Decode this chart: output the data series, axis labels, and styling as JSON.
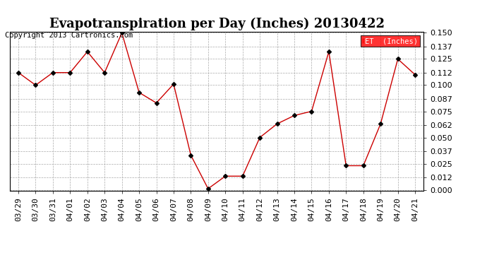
{
  "title": "Evapotranspiration per Day (Inches) 20130422",
  "copyright": "Copyright 2013 Cartronics.com",
  "legend_bg": "#ff0000",
  "legend_text_color": "#ffffff",
  "x_labels": [
    "03/29",
    "03/30",
    "03/31",
    "04/01",
    "04/02",
    "04/03",
    "04/04",
    "04/05",
    "04/06",
    "04/07",
    "04/08",
    "04/09",
    "04/10",
    "04/11",
    "04/12",
    "04/13",
    "04/14",
    "04/15",
    "04/16",
    "04/17",
    "04/18",
    "04/19",
    "04/20",
    "04/21"
  ],
  "y_values": [
    0.112,
    0.1,
    0.112,
    0.112,
    0.132,
    0.112,
    0.15,
    0.093,
    0.083,
    0.101,
    0.033,
    0.001,
    0.013,
    0.013,
    0.05,
    0.063,
    0.071,
    0.075,
    0.132,
    0.023,
    0.023,
    0.063,
    0.125,
    0.11
  ],
  "line_color": "#cc0000",
  "marker_color": "#000000",
  "background_color": "#ffffff",
  "grid_color": "#aaaaaa",
  "ylim": [
    0.0,
    0.15
  ],
  "yticks": [
    0.0,
    0.012,
    0.025,
    0.037,
    0.05,
    0.062,
    0.075,
    0.087,
    0.1,
    0.112,
    0.125,
    0.137,
    0.15
  ],
  "title_fontsize": 13,
  "tick_fontsize": 8,
  "copyright_fontsize": 7.5
}
